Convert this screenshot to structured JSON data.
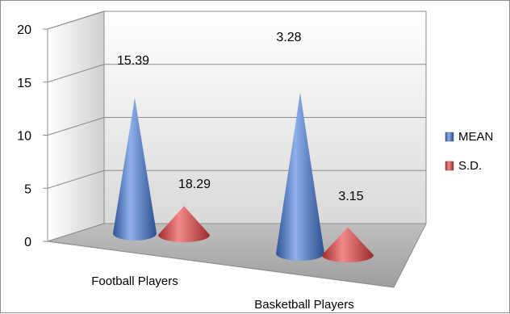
{
  "chart_data": {
    "type": "bar",
    "style": "3d-cone",
    "categories": [
      "Football Players",
      "Basketball Players"
    ],
    "series": [
      {
        "name": "MEAN",
        "values": [
          15.39,
          18.29
        ],
        "color": "#4a77c9"
      },
      {
        "name": "S.D.",
        "values": [
          3.28,
          3.15
        ],
        "color": "#d64a4a"
      }
    ],
    "ylim": [
      0,
      20
    ],
    "yticks": [
      "0",
      "5",
      "10",
      "15",
      "20"
    ],
    "data_labels": [
      "15.39",
      "18.29",
      "3.28",
      "3.15"
    ],
    "grid": true,
    "legend": "right"
  }
}
